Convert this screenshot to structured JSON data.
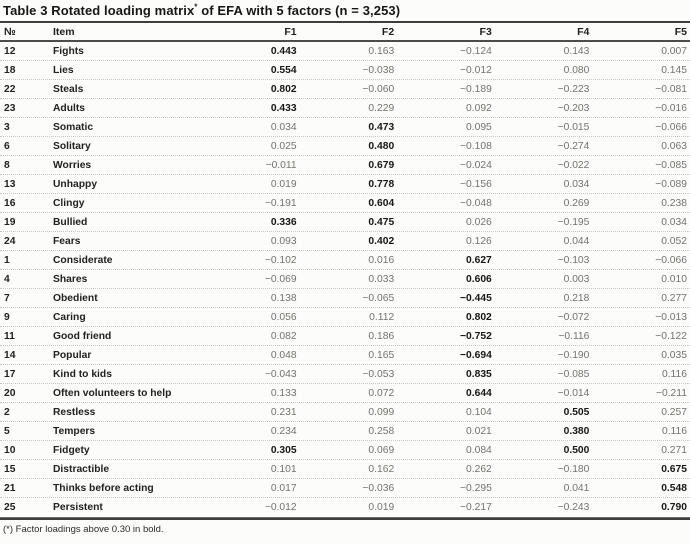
{
  "table": {
    "title": {
      "text": "Table 3 Rotated loading matrix",
      "superscript": "*",
      "rest": " of EFA with 5 factors (n = 3,253)"
    },
    "columns": [
      "№",
      "Item",
      "F1",
      "F2",
      "F3",
      "F4",
      "F5"
    ],
    "rows": [
      {
        "no": "12",
        "item": "Fights",
        "values": [
          "0.443",
          "0.163",
          "−0.124",
          "0.143",
          "0.007"
        ],
        "bold": [
          true,
          false,
          false,
          false,
          false
        ]
      },
      {
        "no": "18",
        "item": "Lies",
        "values": [
          "0.554",
          "−0.038",
          "−0.012",
          "0.080",
          "0.145"
        ],
        "bold": [
          true,
          false,
          false,
          false,
          false
        ]
      },
      {
        "no": "22",
        "item": "Steals",
        "values": [
          "0.802",
          "−0.060",
          "−0.189",
          "−0.223",
          "−0.081"
        ],
        "bold": [
          true,
          false,
          false,
          false,
          false
        ]
      },
      {
        "no": "23",
        "item": "Adults",
        "values": [
          "0.433",
          "0.229",
          "0.092",
          "−0.203",
          "−0.016"
        ],
        "bold": [
          true,
          false,
          false,
          false,
          false
        ]
      },
      {
        "no": "3",
        "item": "Somatic",
        "values": [
          "0.034",
          "0.473",
          "0.095",
          "−0.015",
          "−0.066"
        ],
        "bold": [
          false,
          true,
          false,
          false,
          false
        ]
      },
      {
        "no": "6",
        "item": "Solitary",
        "values": [
          "0.025",
          "0.480",
          "−0.108",
          "−0.274",
          "0.063"
        ],
        "bold": [
          false,
          true,
          false,
          false,
          false
        ]
      },
      {
        "no": "8",
        "item": "Worries",
        "values": [
          "−0.011",
          "0.679",
          "−0.024",
          "−0.022",
          "−0.085"
        ],
        "bold": [
          false,
          true,
          false,
          false,
          false
        ]
      },
      {
        "no": "13",
        "item": "Unhappy",
        "values": [
          "0.019",
          "0.778",
          "−0.156",
          "0.034",
          "−0.089"
        ],
        "bold": [
          false,
          true,
          false,
          false,
          false
        ]
      },
      {
        "no": "16",
        "item": "Clingy",
        "values": [
          "−0.191",
          "0.604",
          "−0.048",
          "0.269",
          "0.238"
        ],
        "bold": [
          false,
          true,
          false,
          false,
          false
        ]
      },
      {
        "no": "19",
        "item": "Bullied",
        "values": [
          "0.336",
          "0.475",
          "0.026",
          "−0.195",
          "0.034"
        ],
        "bold": [
          true,
          true,
          false,
          false,
          false
        ]
      },
      {
        "no": "24",
        "item": "Fears",
        "values": [
          "0.093",
          "0.402",
          "0.126",
          "0.044",
          "0.052"
        ],
        "bold": [
          false,
          true,
          false,
          false,
          false
        ]
      },
      {
        "no": "1",
        "item": "Considerate",
        "values": [
          "−0.102",
          "0.016",
          "0.627",
          "−0.103",
          "−0.066"
        ],
        "bold": [
          false,
          false,
          true,
          false,
          false
        ]
      },
      {
        "no": "4",
        "item": "Shares",
        "values": [
          "−0.069",
          "0.033",
          "0.606",
          "0.003",
          "0.010"
        ],
        "bold": [
          false,
          false,
          true,
          false,
          false
        ]
      },
      {
        "no": "7",
        "item": "Obedient",
        "values": [
          "0.138",
          "−0.065",
          "−0.445",
          "0.218",
          "0.277"
        ],
        "bold": [
          false,
          false,
          true,
          false,
          false
        ]
      },
      {
        "no": "9",
        "item": "Caring",
        "values": [
          "0.056",
          "0.112",
          "0.802",
          "−0.072",
          "−0.013"
        ],
        "bold": [
          false,
          false,
          true,
          false,
          false
        ]
      },
      {
        "no": "11",
        "item": "Good friend",
        "values": [
          "0.082",
          "0.186",
          "−0.752",
          "−0.116",
          "−0.122"
        ],
        "bold": [
          false,
          false,
          true,
          false,
          false
        ]
      },
      {
        "no": "14",
        "item": "Popular",
        "values": [
          "0.048",
          "0.165",
          "−0.694",
          "−0.190",
          "0.035"
        ],
        "bold": [
          false,
          false,
          true,
          false,
          false
        ]
      },
      {
        "no": "17",
        "item": "Kind to kids",
        "values": [
          "−0.043",
          "−0.053",
          "0.835",
          "−0.085",
          "0.116"
        ],
        "bold": [
          false,
          false,
          true,
          false,
          false
        ]
      },
      {
        "no": "20",
        "item": "Often volunteers to help",
        "values": [
          "0.133",
          "0.072",
          "0.644",
          "−0.014",
          "−0.211"
        ],
        "bold": [
          false,
          false,
          true,
          false,
          false
        ]
      },
      {
        "no": "2",
        "item": "Restless",
        "values": [
          "0.231",
          "0.099",
          "0.104",
          "0.505",
          "0.257"
        ],
        "bold": [
          false,
          false,
          false,
          true,
          false
        ]
      },
      {
        "no": "5",
        "item": "Tempers",
        "values": [
          "0.234",
          "0.258",
          "0.021",
          "0.380",
          "0.116"
        ],
        "bold": [
          false,
          false,
          false,
          true,
          false
        ]
      },
      {
        "no": "10",
        "item": "Fidgety",
        "values": [
          "0.305",
          "0.069",
          "0.084",
          "0.500",
          "0.271"
        ],
        "bold": [
          true,
          false,
          false,
          true,
          false
        ]
      },
      {
        "no": "15",
        "item": "Distractible",
        "values": [
          "0.101",
          "0.162",
          "0.262",
          "−0.180",
          "0.675"
        ],
        "bold": [
          false,
          false,
          false,
          false,
          true
        ]
      },
      {
        "no": "21",
        "item": "Thinks before acting",
        "values": [
          "0.017",
          "−0.036",
          "−0.295",
          "0.041",
          "0.548"
        ],
        "bold": [
          false,
          false,
          false,
          false,
          true
        ]
      },
      {
        "no": "25",
        "item": "Persistent",
        "values": [
          "−0.012",
          "0.019",
          "−0.217",
          "−0.243",
          "0.790"
        ],
        "bold": [
          false,
          false,
          false,
          false,
          true
        ]
      }
    ],
    "footnote": "(*) Factor loadings above 0.30 in bold."
  }
}
